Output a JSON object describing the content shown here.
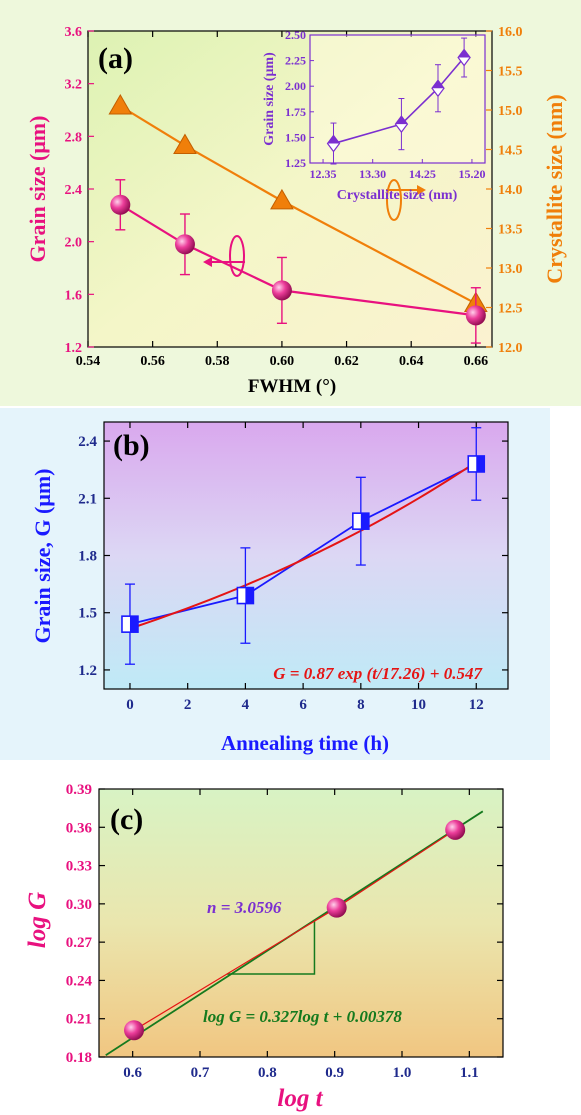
{
  "colors": {
    "pink": "#e8117f",
    "orange": "#f07f0a",
    "purple": "#7b2fd0",
    "blue": "#1a1aff",
    "red": "#e51414",
    "green": "#157a1e",
    "navy": "#1f2a8c"
  },
  "panel_a": {
    "label": "(a)",
    "xlabel": "FWHM (°)",
    "ylabel_left": "Grain size (μm)",
    "ylabel_right": "Crystallite size (nm)",
    "xticks": [
      "0.54",
      "0.56",
      "0.58",
      "0.60",
      "0.62",
      "0.64",
      "0.66"
    ],
    "yticks_left": [
      "1.2",
      "1.6",
      "2.0",
      "2.4",
      "2.8",
      "3.2",
      "3.6"
    ],
    "yticks_right": [
      "12.0",
      "12.5",
      "13.0",
      "13.5",
      "14.0",
      "14.5",
      "15.0",
      "15.5",
      "16.0"
    ],
    "inset": {
      "xlabel": "Crystallite size (nm)",
      "ylabel": "Grain size (μm)",
      "xticks": [
        "12.35",
        "13.30",
        "14.25",
        "15.20"
      ],
      "yticks": [
        "1.25",
        "1.50",
        "1.75",
        "2.00",
        "2.25",
        "2.50"
      ]
    }
  },
  "panel_b": {
    "label": "(b)",
    "xlabel": "Annealing time (h)",
    "ylabel": "Grain size, G (μm)",
    "equation": "G = 0.87 exp (t/17.26) + 0.547",
    "xticks": [
      "0",
      "2",
      "4",
      "6",
      "8",
      "10",
      "12"
    ],
    "yticks": [
      "1.2",
      "1.5",
      "1.8",
      "2.1",
      "2.4"
    ]
  },
  "panel_c": {
    "label": "(c)",
    "xlabel": "log t",
    "ylabel": "log G",
    "slope_label": "n = 3.0596",
    "equation": "log G = 0.327log t + 0.00378",
    "xticks": [
      "0.6",
      "0.7",
      "0.8",
      "0.9",
      "1.0",
      "1.1"
    ],
    "yticks": [
      "0.18",
      "0.21",
      "0.24",
      "0.27",
      "0.30",
      "0.33",
      "0.36",
      "0.39"
    ]
  },
  "chart_data": [
    {
      "type": "line",
      "xlim": [
        0.54,
        0.665
      ],
      "ylim": [
        1.2,
        3.6
      ],
      "y2lim": [
        12.0,
        16.0
      ],
      "series": [
        {
          "x": [
            0.55,
            0.57,
            0.6,
            0.66
          ],
          "values": [
            2.28,
            1.98,
            1.63,
            1.44
          ],
          "errors": [
            0.19,
            0.23,
            0.25,
            0.21
          ],
          "axis": "left"
        },
        {
          "x": [
            0.55,
            0.57,
            0.6,
            0.66
          ],
          "values": [
            15.05,
            14.55,
            13.85,
            12.55
          ],
          "axis": "right"
        }
      ]
    },
    {
      "type": "line",
      "inset": true,
      "xlim": [
        12.1,
        15.45
      ],
      "ylim": [
        1.25,
        2.5
      ],
      "series": [
        {
          "x": [
            12.55,
            13.85,
            14.55,
            15.05
          ],
          "values": [
            1.44,
            1.63,
            1.98,
            2.28
          ],
          "errors": [
            0.2,
            0.25,
            0.23,
            0.19
          ]
        }
      ]
    },
    {
      "type": "line",
      "xlim": [
        -0.9,
        13.1
      ],
      "ylim": [
        1.1,
        2.5
      ],
      "series": [
        {
          "x": [
            0,
            4,
            8,
            12
          ],
          "values": [
            1.44,
            1.59,
            1.98,
            2.28
          ],
          "errors": [
            0.21,
            0.25,
            0.23,
            0.19
          ]
        },
        {
          "fit": true,
          "x_range": [
            0,
            12
          ]
        }
      ]
    },
    {
      "type": "scatter",
      "xlim": [
        0.55,
        1.15
      ],
      "ylim": [
        0.18,
        0.39
      ],
      "series": [
        {
          "x": [
            0.602,
            0.903,
            1.079
          ],
          "values": [
            0.201,
            0.297,
            0.358
          ]
        },
        {
          "fit": true,
          "x_range": [
            0.56,
            1.12
          ]
        }
      ]
    }
  ]
}
